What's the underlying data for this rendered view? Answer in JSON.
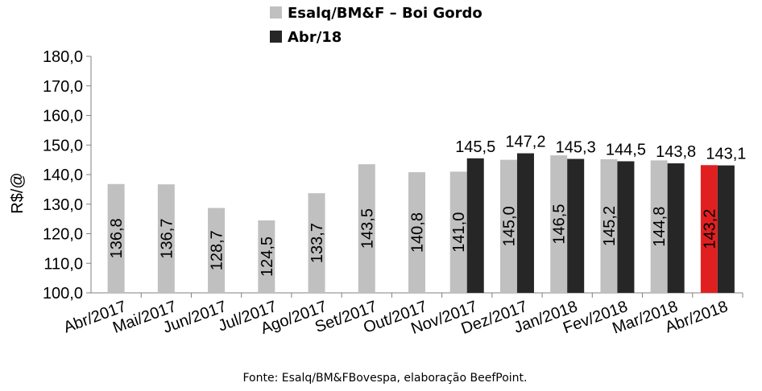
{
  "chart_data": {
    "type": "bar",
    "ylabel": "R$/@",
    "ylim": [
      100,
      180
    ],
    "yticks": [
      "100,0",
      "110,0",
      "120,0",
      "130,0",
      "140,0",
      "150,0",
      "160,0",
      "170,0",
      "180,0"
    ],
    "categories": [
      "Abr/2017",
      "Mai/2017",
      "Jun/2017",
      "Jul/2017",
      "Ago/2017",
      "Set/2017",
      "Out/2017",
      "Nov/2017",
      "Dez/2017",
      "Jan/2018",
      "Fev/2018",
      "Mar/2018",
      "Abr/2018"
    ],
    "legend_position": "top",
    "grid": false,
    "series": [
      {
        "name": "Esalq/BM&F – Boi Gordo",
        "color": "#c0c0c0",
        "highlight_color": "#e02020",
        "highlight_index": 12,
        "values": [
          136.8,
          136.7,
          128.7,
          124.5,
          133.7,
          143.5,
          140.8,
          141.0,
          145.0,
          146.5,
          145.2,
          144.8,
          143.2
        ],
        "labels": [
          "136,8",
          "136,7",
          "128,7",
          "124,5",
          "133,7",
          "143,5",
          "140,8",
          "141,0",
          "145,0",
          "146,5",
          "145,2",
          "144,8",
          "143,2"
        ]
      },
      {
        "name": "Abr/18",
        "color": "#262626",
        "values": [
          null,
          null,
          null,
          null,
          null,
          null,
          null,
          145.5,
          147.2,
          145.3,
          144.5,
          143.8,
          143.1
        ],
        "labels": [
          "",
          "",
          "",
          "",
          "",
          "",
          "",
          "145,5",
          "147,2",
          "145,3",
          "144,5",
          "143,8",
          "143,1"
        ]
      }
    ]
  },
  "source": "Fonte: Esalq/BM&FBovespa, elaboração BeefPoint."
}
